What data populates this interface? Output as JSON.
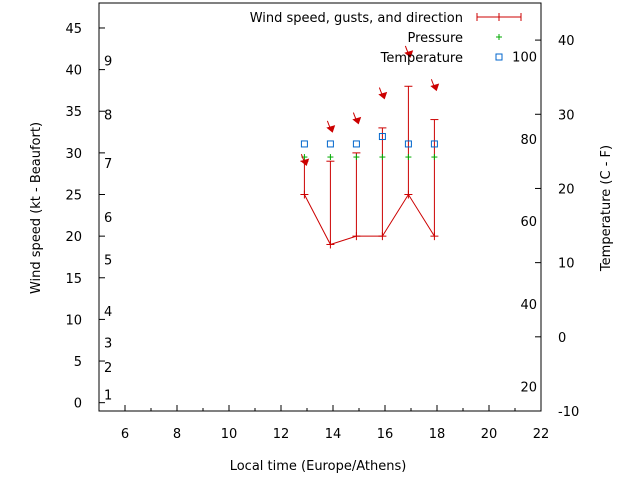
{
  "chart_data": {
    "type": "line",
    "title": "",
    "xlabel": "Local time (Europe/Athens)",
    "ylabel": "Wind speed (kt - Beaufort)",
    "y2label": "Temperature (C - F)",
    "xlim": [
      5,
      22
    ],
    "ylim": [
      -1,
      48
    ],
    "y2lim": [
      -10,
      45
    ],
    "x_ticks": [
      6,
      8,
      10,
      12,
      14,
      16,
      18,
      20,
      22
    ],
    "y_ticks": [
      0,
      5,
      10,
      15,
      20,
      25,
      30,
      35,
      40,
      45
    ],
    "y2_ticks": [
      -10,
      0,
      10,
      20,
      30,
      40
    ],
    "beaufort_labels": [
      {
        "label": "1",
        "y": 1
      },
      {
        "label": "2",
        "y": 4.3
      },
      {
        "label": "3",
        "y": 7.2
      },
      {
        "label": "4",
        "y": 11
      },
      {
        "label": "5",
        "y": 17.2
      },
      {
        "label": "6",
        "y": 22.3
      },
      {
        "label": "7",
        "y": 28.8
      },
      {
        "label": "8",
        "y": 34.6
      },
      {
        "label": "9",
        "y": 41.1
      }
    ],
    "fahrenheit_labels": [
      {
        "label": "20",
        "y2": -6.7
      },
      {
        "label": "40",
        "y2": 4.4
      },
      {
        "label": "60",
        "y2": 15.6
      },
      {
        "label": "80",
        "y2": 26.7
      },
      {
        "label": "100",
        "y2": 37.8
      }
    ],
    "legend_position": "top-right",
    "series": [
      {
        "name": "Wind speed, gusts, and direction",
        "color": "#cc0000",
        "x": [
          12.9,
          13.9,
          14.9,
          15.9,
          16.9,
          17.9
        ],
        "values": [
          25,
          19,
          20,
          20,
          25,
          20
        ],
        "gusts": [
          29,
          29,
          30,
          33,
          38,
          34
        ]
      },
      {
        "name": "Pressure",
        "color": "#00aa00",
        "x": [
          12.9,
          13.9,
          14.9,
          15.9,
          16.9,
          17.9
        ],
        "values": [
          29.5,
          29.5,
          29.5,
          29.5,
          29.5,
          29.5
        ]
      },
      {
        "name": "Temperature",
        "color": "#0066cc",
        "x": [
          12.9,
          13.9,
          14.9,
          15.9,
          16.9,
          17.9
        ],
        "values": [
          26,
          26,
          26,
          27,
          26,
          26
        ],
        "axis": "y2"
      }
    ],
    "direction_arrows": [
      {
        "x": 12.9,
        "y": 29.0
      },
      {
        "x": 13.9,
        "y": 33.0
      },
      {
        "x": 14.9,
        "y": 34.0
      },
      {
        "x": 15.9,
        "y": 37.0
      },
      {
        "x": 16.9,
        "y": 42.0
      },
      {
        "x": 17.9,
        "y": 38.0
      }
    ]
  }
}
